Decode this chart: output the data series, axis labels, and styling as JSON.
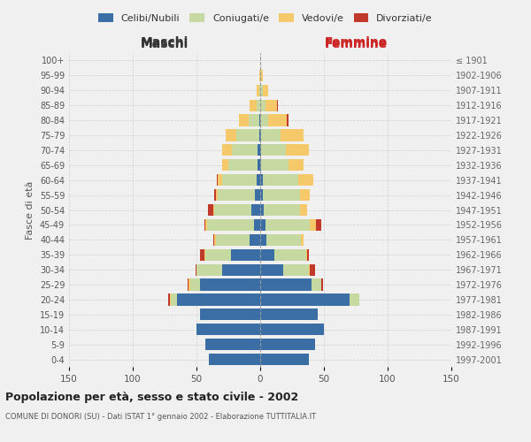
{
  "age_groups": [
    "0-4",
    "5-9",
    "10-14",
    "15-19",
    "20-24",
    "25-29",
    "30-34",
    "35-39",
    "40-44",
    "45-49",
    "50-54",
    "55-59",
    "60-64",
    "65-69",
    "70-74",
    "75-79",
    "80-84",
    "85-89",
    "90-94",
    "95-99",
    "100+"
  ],
  "birth_years": [
    "1997-2001",
    "1992-1996",
    "1987-1991",
    "1982-1986",
    "1977-1981",
    "1972-1976",
    "1967-1971",
    "1962-1966",
    "1957-1961",
    "1952-1956",
    "1947-1951",
    "1942-1946",
    "1937-1941",
    "1932-1936",
    "1927-1931",
    "1922-1926",
    "1917-1921",
    "1912-1916",
    "1907-1911",
    "1902-1906",
    "≤ 1901"
  ],
  "male": {
    "celibi": [
      40,
      43,
      50,
      47,
      65,
      47,
      30,
      23,
      8,
      5,
      7,
      4,
      3,
      2,
      2,
      1,
      1,
      0,
      0,
      0,
      0
    ],
    "coniugati": [
      0,
      0,
      0,
      0,
      5,
      8,
      20,
      20,
      27,
      37,
      29,
      29,
      27,
      23,
      20,
      18,
      8,
      3,
      1,
      0,
      0
    ],
    "vedovi": [
      0,
      0,
      0,
      0,
      1,
      1,
      0,
      1,
      1,
      1,
      1,
      2,
      3,
      5,
      8,
      8,
      8,
      5,
      2,
      1,
      0
    ],
    "divorziati": [
      0,
      0,
      0,
      0,
      1,
      1,
      1,
      3,
      1,
      1,
      4,
      1,
      1,
      0,
      0,
      0,
      0,
      0,
      0,
      0,
      0
    ]
  },
  "female": {
    "nubili": [
      38,
      43,
      50,
      45,
      70,
      40,
      18,
      11,
      5,
      4,
      3,
      2,
      2,
      1,
      1,
      1,
      0,
      0,
      0,
      0,
      0
    ],
    "coniugate": [
      0,
      0,
      0,
      0,
      8,
      8,
      20,
      25,
      27,
      35,
      28,
      29,
      28,
      21,
      19,
      15,
      6,
      4,
      2,
      1,
      0
    ],
    "vedove": [
      0,
      0,
      0,
      0,
      0,
      0,
      1,
      1,
      2,
      5,
      6,
      8,
      12,
      12,
      18,
      18,
      15,
      9,
      4,
      1,
      0
    ],
    "divorziate": [
      0,
      0,
      0,
      0,
      0,
      1,
      4,
      1,
      0,
      4,
      0,
      0,
      0,
      0,
      0,
      0,
      1,
      1,
      0,
      0,
      0
    ]
  },
  "colors": {
    "celibi": "#3a6ea5",
    "coniugati": "#c5d9a0",
    "vedovi": "#f5c96a",
    "divorziati": "#c0392b"
  },
  "xlim": 150,
  "title": "Popolazione per età, sesso e stato civile - 2002",
  "subtitle": "COMUNE DI DONORI (SU) - Dati ISTAT 1° gennaio 2002 - Elaborazione TUTTITALIA.IT",
  "ylabel_left": "Fasce di età",
  "xlabel_maschi": "Maschi",
  "xlabel_femmine": "Femmine",
  "bg_color": "#f0f0f0",
  "grid_color": "#cccccc"
}
